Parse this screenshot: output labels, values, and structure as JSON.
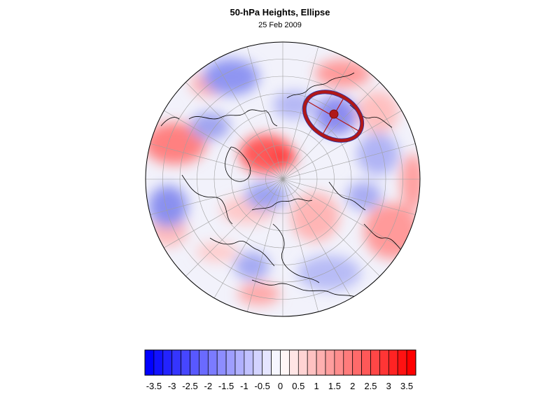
{
  "title": "50-hPa Heights, Ellipse",
  "date": "25 Feb 2009",
  "colorbar": {
    "ticks": [
      "-3.5",
      "-3",
      "-2.5",
      "-2",
      "-1.5",
      "-1",
      "-0.5",
      "0",
      "0.5",
      "1",
      "1.5",
      "2",
      "2.5",
      "3",
      "3.5"
    ],
    "min": -3.75,
    "max": 3.75,
    "step": 0.25,
    "negative_color": "#0000ff",
    "positive_color": "#ff0000",
    "neutral_color": "#ffffff"
  },
  "map": {
    "projection": "polar orthographic",
    "grid": true,
    "ellipse_color": "#b01818",
    "ellipse_edge_color": "#2233aa"
  }
}
